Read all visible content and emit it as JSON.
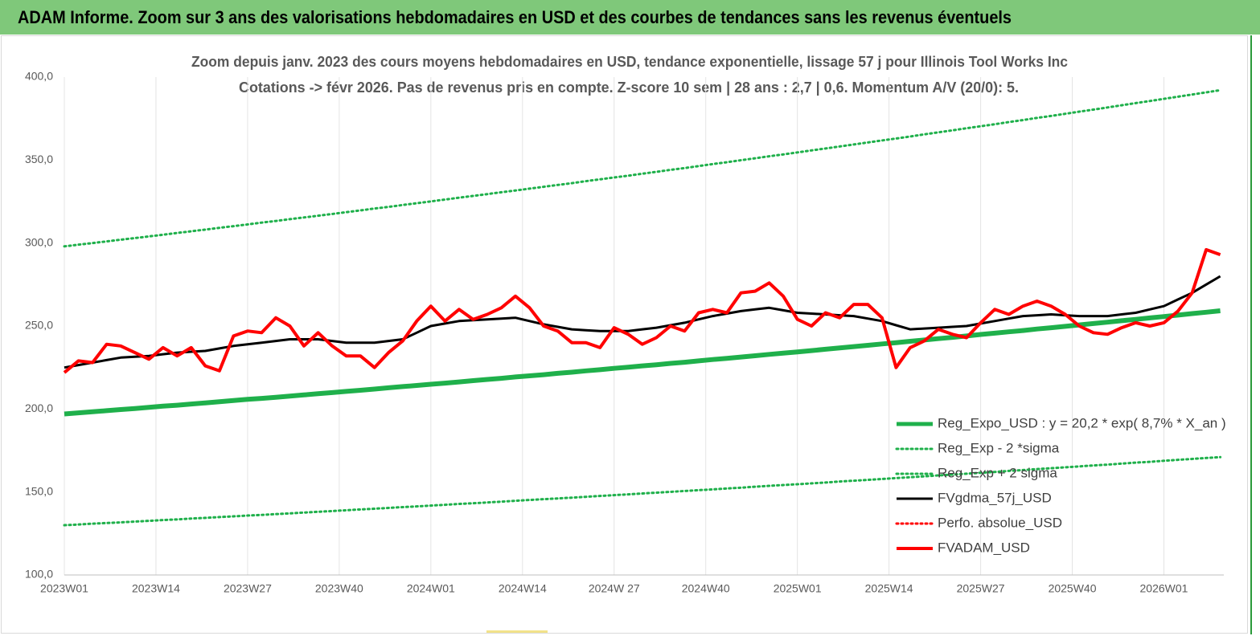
{
  "header": {
    "title": "ADAM Informe. Zoom sur 3 ans des valorisations hebdomadaires en USD et des courbes de tendances sans les revenus éventuels"
  },
  "chart_data": {
    "type": "line",
    "title": "Zoom depuis janv. 2023 des cours moyens hebdomadaires en USD, tendance exponentielle, lissage 57 j pour Illinois Tool Works Inc",
    "subtitle": "Cotations -> févr 2026. Pas de revenus pris en compte. Z-score 10 sem | 28 ans : 2,7 | 0,6. Momentum A/V (20/0): 5.",
    "x": [
      0,
      2,
      4,
      6,
      8,
      10,
      12,
      14,
      16,
      18,
      20,
      22,
      24,
      26,
      28,
      30,
      32,
      34,
      36,
      38,
      40,
      42,
      44,
      46,
      48,
      50,
      52,
      54,
      56,
      58,
      60,
      62,
      64,
      66,
      68,
      70,
      72,
      74,
      76,
      78,
      80,
      82,
      84,
      86,
      88,
      90,
      92,
      94,
      96,
      98,
      100,
      102,
      104,
      106,
      108,
      110,
      112,
      114,
      116,
      118,
      120,
      122,
      124,
      126,
      128,
      130,
      132,
      134,
      136,
      138,
      140,
      142,
      144,
      146,
      148,
      150,
      152,
      154,
      156,
      158,
      160,
      162,
      164
    ],
    "xlim": [
      0,
      164.5
    ],
    "xticks": [
      {
        "value": 0,
        "label": "2023W01"
      },
      {
        "value": 13,
        "label": "2023W14"
      },
      {
        "value": 26,
        "label": "2023W27"
      },
      {
        "value": 39,
        "label": "2023W40"
      },
      {
        "value": 52,
        "label": "2024W01"
      },
      {
        "value": 65,
        "label": "2024W14"
      },
      {
        "value": 78,
        "label": "2024W 27"
      },
      {
        "value": 91,
        "label": "2024W40"
      },
      {
        "value": 104,
        "label": "2025W01"
      },
      {
        "value": 117,
        "label": "2025W14"
      },
      {
        "value": 130,
        "label": "2025W27"
      },
      {
        "value": 143,
        "label": "2025W40"
      },
      {
        "value": 156,
        "label": "2026W01"
      }
    ],
    "ylim": [
      100,
      400
    ],
    "yticks": [
      {
        "value": 100,
        "label": "100,0"
      },
      {
        "value": 150,
        "label": "150,0"
      },
      {
        "value": 200,
        "label": "200,0"
      },
      {
        "value": 250,
        "label": "250,0"
      },
      {
        "value": 300,
        "label": "300,0"
      },
      {
        "value": 350,
        "label": "350,0"
      },
      {
        "value": 400,
        "label": "400,0"
      }
    ],
    "grid": true,
    "legend": "lower-right",
    "series": [
      {
        "name": "Reg_Expo_USD : y = 20,2 * exp( 8,7% *  X_an )",
        "color": "#1fb04b",
        "style": "solid",
        "width": 6,
        "values": [
          197.0,
          197.7,
          198.3,
          199.0,
          199.7,
          200.3,
          201.0,
          201.7,
          202.3,
          203.0,
          203.7,
          204.4,
          205.1,
          205.8,
          206.4,
          207.1,
          207.8,
          208.5,
          209.2,
          209.9,
          210.6,
          211.3,
          212.0,
          212.8,
          213.5,
          214.2,
          214.9,
          215.6,
          216.3,
          217.1,
          217.8,
          218.5,
          219.3,
          220.0,
          220.7,
          221.5,
          222.2,
          223.0,
          223.7,
          224.5,
          225.2,
          226.0,
          226.7,
          227.5,
          228.2,
          229.0,
          229.8,
          230.5,
          231.3,
          232.1,
          232.9,
          233.7,
          234.4,
          235.2,
          236.0,
          236.8,
          237.6,
          238.4,
          239.2,
          240.0,
          240.8,
          241.6,
          242.4,
          243.2,
          244.0,
          244.9,
          245.7,
          246.5,
          247.3,
          248.2,
          249.0,
          249.8,
          250.7,
          251.5,
          252.3,
          253.2,
          254.0,
          254.9,
          255.7,
          256.6,
          257.5,
          258.3,
          259.2
        ]
      },
      {
        "name": "Reg_Exp - 2 *sigma",
        "color": "#1fb04b",
        "style": "dotted",
        "width": 3,
        "values": [
          130.0,
          130.4,
          130.9,
          131.3,
          131.7,
          132.2,
          132.6,
          133.1,
          133.5,
          134.0,
          134.4,
          134.9,
          135.3,
          135.8,
          136.2,
          136.7,
          137.1,
          137.6,
          138.1,
          138.5,
          139.0,
          139.5,
          139.9,
          140.4,
          140.9,
          141.3,
          141.8,
          142.3,
          142.8,
          143.2,
          143.7,
          144.2,
          144.7,
          145.2,
          145.7,
          146.1,
          146.6,
          147.1,
          147.6,
          148.1,
          148.6,
          149.1,
          149.6,
          150.1,
          150.6,
          151.1,
          151.6,
          152.1,
          152.6,
          153.2,
          153.7,
          154.2,
          154.7,
          155.2,
          155.7,
          156.3,
          156.8,
          157.3,
          157.8,
          158.4,
          158.9,
          159.4,
          160.0,
          160.5,
          161.0,
          161.6,
          162.1,
          162.7,
          163.2,
          163.8,
          164.3,
          164.9,
          165.4,
          166.0,
          166.5,
          167.1,
          167.7,
          168.2,
          168.8,
          169.4,
          169.9,
          170.5,
          171.0
        ]
      },
      {
        "name": "Reg_Exp + 2 sigma",
        "color": "#1fb04b",
        "style": "dotted",
        "width": 3,
        "values": [
          298.0,
          299.0,
          300.0,
          301.0,
          302.0,
          303.0,
          304.0,
          305.0,
          306.1,
          307.1,
          308.1,
          309.2,
          310.2,
          311.2,
          312.3,
          313.3,
          314.4,
          315.4,
          316.5,
          317.5,
          318.6,
          319.7,
          320.8,
          321.8,
          322.9,
          324.0,
          325.1,
          326.2,
          327.3,
          328.4,
          329.5,
          330.6,
          331.7,
          332.8,
          333.9,
          335.0,
          336.1,
          337.3,
          338.4,
          339.5,
          340.6,
          341.8,
          342.9,
          344.1,
          345.2,
          346.4,
          347.6,
          348.7,
          349.9,
          351.1,
          352.3,
          353.4,
          354.6,
          355.8,
          357.0,
          358.2,
          359.4,
          360.6,
          361.8,
          363.0,
          364.2,
          365.5,
          366.7,
          367.9,
          369.2,
          370.4,
          371.6,
          372.9,
          374.1,
          375.4,
          376.6,
          377.9,
          379.2,
          380.4,
          381.7,
          383.0,
          384.3,
          385.6,
          386.9,
          388.2,
          389.5,
          390.8,
          392.1
        ]
      },
      {
        "name": "FVgdma_57j_USD",
        "color": "#000000",
        "style": "solid",
        "width": 3,
        "values": [
          225,
          226.5,
          228,
          229.5,
          231,
          231.5,
          232,
          233,
          234,
          234.5,
          235,
          236.5,
          238,
          239,
          240,
          241,
          242,
          242,
          242,
          241,
          240,
          240,
          240,
          241,
          242,
          246,
          250,
          251.5,
          253,
          253.5,
          254,
          254.5,
          255,
          253,
          251,
          249.5,
          248,
          247.5,
          247,
          247,
          247,
          248,
          249,
          250.5,
          252,
          254,
          256,
          257.5,
          259,
          260,
          261,
          259.5,
          258,
          257.5,
          257,
          256.5,
          256,
          254.5,
          253,
          250.5,
          248,
          248.5,
          249,
          249.5,
          250,
          251.5,
          253,
          254.5,
          256,
          256.5,
          257,
          256.5,
          256,
          256,
          256,
          257,
          258,
          260,
          262,
          266,
          270,
          275,
          280
        ]
      },
      {
        "name": "Perfo. absolue_USD",
        "color": "#ff0000",
        "style": "dotted",
        "width": 3,
        "values": [
          null,
          null,
          null,
          null,
          null,
          null,
          null,
          null,
          null,
          null,
          null,
          null,
          null,
          null,
          null,
          null,
          null,
          null,
          null,
          null,
          null,
          null,
          null,
          null,
          null,
          null,
          null,
          null,
          null,
          null,
          null,
          null,
          null,
          null,
          null,
          null,
          null,
          null,
          null,
          null,
          null,
          null,
          null,
          null,
          null,
          null,
          null,
          null,
          null,
          null,
          null,
          null,
          null,
          null,
          null,
          null,
          null,
          null,
          null,
          null,
          null,
          null,
          null,
          null,
          null,
          null,
          null,
          null,
          null,
          null,
          null,
          null,
          null,
          null,
          null,
          null,
          null,
          null,
          null,
          null,
          null,
          null,
          null
        ]
      },
      {
        "name": "FVADAM_USD",
        "color": "#ff0000",
        "style": "solid",
        "width": 4,
        "values": [
          222,
          229,
          228,
          239,
          238,
          234,
          230,
          237,
          232,
          237,
          226,
          223,
          244,
          247,
          246,
          255,
          250,
          238,
          246,
          238,
          232,
          232,
          225,
          234,
          241,
          253,
          262,
          253,
          260,
          254,
          257,
          261,
          268,
          261,
          250,
          247,
          240,
          240,
          237,
          249,
          245,
          239,
          243,
          250,
          247,
          258,
          260,
          258,
          270,
          271,
          276,
          268,
          254,
          250,
          258,
          255,
          263,
          263,
          255,
          225,
          237,
          241,
          248,
          245,
          243,
          252,
          260,
          257,
          262,
          265,
          262,
          257,
          250,
          246,
          245,
          249,
          252,
          250,
          252,
          259,
          270,
          296,
          293
        ]
      }
    ]
  }
}
